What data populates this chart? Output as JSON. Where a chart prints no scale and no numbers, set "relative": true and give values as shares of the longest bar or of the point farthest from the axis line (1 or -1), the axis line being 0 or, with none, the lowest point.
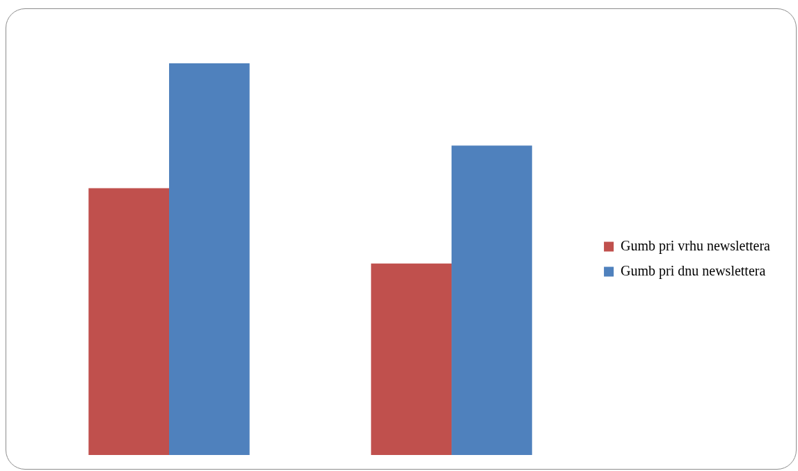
{
  "chart_data": {
    "type": "bar",
    "relative": true,
    "categories": [
      null,
      null
    ],
    "series": [
      {
        "name": "Gumb pri vrhu newslettera",
        "color": "#c0504d",
        "values": [
          0.681,
          0.489
        ]
      },
      {
        "name": "Gumb pri dnu newslettera",
        "color": "#4f81bd",
        "values": [
          1,
          0.79
        ]
      }
    ],
    "legend": "right"
  }
}
